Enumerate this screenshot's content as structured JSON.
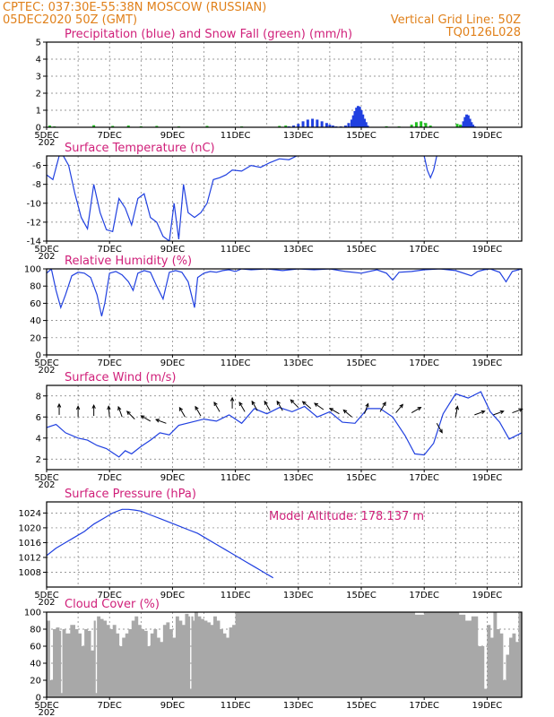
{
  "header": {
    "line1_left": "CPTEC:   037:30E-55:38N   MOSCOW (RUSSIAN)",
    "line2_left": "05DEC2020 50Z (GMT)",
    "line1_right": "Vertical Grid Line: 50Z",
    "line2_right": "TQ0126L028",
    "model_altitude": "Model Altitude: 178.137 m"
  },
  "colors": {
    "header": "#e0801a",
    "title": "#d0207a",
    "line": "#2040e0",
    "snow": "#20c020",
    "cloud": "#a8a8a8"
  },
  "x_axis": {
    "labels": [
      "5DEC",
      "7DEC",
      "9DEC",
      "11DEC",
      "13DEC",
      "15DEC",
      "17DEC",
      "19DEC"
    ],
    "label_days": [
      0,
      2,
      4,
      6,
      8,
      10,
      12,
      14
    ],
    "range_days": [
      0,
      15.1
    ],
    "cut_label": "202"
  },
  "chart_data": [
    {
      "type": "bar",
      "title": "Precipitation (blue) and Snow Fall (green) (mm/h)",
      "ylim": [
        0,
        5
      ],
      "yticks": [
        "0",
        "1",
        "2",
        "3",
        "4",
        "5"
      ],
      "series": [
        {
          "name": "Precipitation",
          "color": "#2040e0",
          "x": [
            7.7,
            7.85,
            8.0,
            8.15,
            8.3,
            8.45,
            8.6,
            8.75,
            8.9,
            9.0,
            9.1,
            9.2,
            9.35,
            9.5,
            9.6,
            9.7,
            9.75,
            9.8,
            9.85,
            9.9,
            9.95,
            10.0,
            10.05,
            10.1,
            10.15,
            10.2,
            13.2,
            13.25,
            13.3,
            13.35,
            13.4,
            13.45,
            13.5,
            13.55,
            13.6
          ],
          "values": [
            0.05,
            0.1,
            0.2,
            0.35,
            0.45,
            0.5,
            0.45,
            0.35,
            0.25,
            0.15,
            0.1,
            0.05,
            0.05,
            0.1,
            0.25,
            0.45,
            0.7,
            0.95,
            1.15,
            1.25,
            1.2,
            1.0,
            0.75,
            0.5,
            0.3,
            0.1,
            0.1,
            0.35,
            0.6,
            0.75,
            0.7,
            0.5,
            0.3,
            0.15,
            0.05
          ]
        },
        {
          "name": "Snow Fall",
          "color": "#20c020",
          "x": [
            0.1,
            0.25,
            1.5,
            2.1,
            2.6,
            3.0,
            3.5,
            4.2,
            5.1,
            6.2,
            7.4,
            7.6,
            10.8,
            11.2,
            11.6,
            11.75,
            11.9,
            12.05,
            12.2,
            13.05,
            13.15
          ],
          "values": [
            0.1,
            0.05,
            0.12,
            0.08,
            0.1,
            0.06,
            0.08,
            0.05,
            0.08,
            0.05,
            0.08,
            0.1,
            0.06,
            0.05,
            0.15,
            0.3,
            0.35,
            0.25,
            0.1,
            0.2,
            0.15
          ]
        }
      ]
    },
    {
      "type": "line",
      "title": "Surface Temperature (nC)",
      "ylim": [
        -14,
        -5
      ],
      "yticks": [
        "-14",
        "-12",
        "-10",
        "-8",
        "-6"
      ],
      "series": [
        {
          "name": "",
          "x": [
            0,
            0.2,
            0.4,
            0.5,
            0.7,
            0.9,
            1.1,
            1.3,
            1.5,
            1.7,
            1.9,
            2.1,
            2.3,
            2.5,
            2.7,
            2.9,
            3.1,
            3.3,
            3.5,
            3.7,
            3.9,
            4.05,
            4.2,
            4.35,
            4.5,
            4.7,
            4.9,
            5.1,
            5.3,
            5.5,
            5.7,
            5.9,
            6.2,
            6.5,
            6.8,
            7.1,
            7.4,
            7.7,
            7.95
          ],
          "values": [
            -7,
            -7.5,
            -5,
            -4.8,
            -6,
            -9,
            -11.5,
            -12.7,
            -8,
            -11,
            -12.8,
            -13,
            -9.5,
            -10.5,
            -12.3,
            -9.5,
            -9,
            -11.5,
            -12,
            -13.5,
            -14,
            -10,
            -13.8,
            -8,
            -11,
            -11.5,
            -11,
            -10,
            -7.5,
            -7.3,
            -7,
            -6.5,
            -6.6,
            -6,
            -6.2,
            -5.7,
            -5.3,
            -5.4,
            -5
          ]
        },
        {
          "name": "",
          "x": [
            12.0,
            12.1,
            12.2,
            12.3,
            12.4
          ],
          "values": [
            -5,
            -6.5,
            -7.3,
            -6.5,
            -5
          ]
        }
      ]
    },
    {
      "type": "line",
      "title": "Relative Humidity (%)",
      "ylim": [
        0,
        100
      ],
      "yticks": [
        "0",
        "20",
        "40",
        "60",
        "80",
        "100"
      ],
      "series": [
        {
          "name": "",
          "x": [
            0,
            0.15,
            0.3,
            0.45,
            0.6,
            0.8,
            1.0,
            1.2,
            1.4,
            1.6,
            1.75,
            1.85,
            2.0,
            2.2,
            2.4,
            2.6,
            2.75,
            2.9,
            3.1,
            3.3,
            3.5,
            3.7,
            3.9,
            4.1,
            4.3,
            4.5,
            4.6,
            4.7,
            4.8,
            5.0,
            5.2,
            5.4,
            5.6,
            5.8,
            6.0,
            6.2,
            6.5,
            7.0,
            7.5,
            8.0,
            8.5,
            9.0,
            9.5,
            10.0,
            10.5,
            10.8,
            11.0,
            11.2,
            11.6,
            12.0,
            12.5,
            13.0,
            13.5,
            13.7,
            13.9,
            14.1,
            14.4,
            14.6,
            14.8,
            15.1
          ],
          "values": [
            95,
            100,
            75,
            55,
            70,
            92,
            96,
            95,
            90,
            70,
            45,
            60,
            95,
            97,
            93,
            85,
            75,
            95,
            98,
            96,
            80,
            65,
            96,
            98,
            96,
            85,
            70,
            55,
            90,
            95,
            97,
            96,
            98,
            99,
            97,
            100,
            99,
            100,
            98,
            100,
            99,
            100,
            97,
            95,
            99,
            95,
            87,
            96,
            97,
            99,
            100,
            98,
            92,
            97,
            99,
            100,
            96,
            85,
            97,
            100
          ]
        }
      ]
    },
    {
      "type": "line",
      "title": "Surface Wind (m/s)",
      "ylim": [
        1,
        9
      ],
      "yticks": [
        "2",
        "4",
        "6",
        "8"
      ],
      "series": [
        {
          "name": "",
          "x": [
            0,
            0.3,
            0.6,
            1.0,
            1.3,
            1.6,
            1.9,
            2.1,
            2.3,
            2.5,
            2.7,
            3.0,
            3.3,
            3.6,
            3.9,
            4.2,
            4.6,
            5.0,
            5.4,
            5.8,
            6.2,
            6.6,
            7.0,
            7.4,
            7.8,
            8.2,
            8.6,
            9.0,
            9.4,
            9.8,
            10.2,
            10.6,
            11.0,
            11.4,
            11.7,
            12.0,
            12.3,
            12.6,
            13.0,
            13.4,
            13.8,
            14.1,
            14.4,
            14.7,
            15.1
          ],
          "values": [
            5,
            5.3,
            4.5,
            4,
            3.8,
            3.3,
            3,
            2.6,
            2.2,
            2.8,
            2.5,
            3.2,
            3.8,
            4.5,
            4.3,
            5.2,
            5.5,
            5.8,
            5.6,
            6.2,
            5.4,
            6.8,
            6.3,
            6.9,
            6.5,
            7,
            6,
            6.5,
            5.5,
            5.4,
            6.8,
            6.8,
            6,
            4.2,
            2.5,
            2.4,
            3.5,
            6.3,
            8.2,
            7.8,
            8.4,
            6.5,
            5.5,
            3.9,
            4.5
          ]
        }
      ]
    },
    {
      "type": "line",
      "title": "Surface Pressure (hPa)",
      "ylim": [
        1004,
        1027
      ],
      "yticks": [
        "1008",
        "1012",
        "1016",
        "1020",
        "1024"
      ],
      "series": [
        {
          "name": "",
          "x": [
            0,
            0.3,
            0.6,
            0.9,
            1.2,
            1.5,
            1.8,
            2.1,
            2.4,
            2.6,
            2.8,
            3.0,
            3.3,
            3.6,
            3.9,
            4.2,
            4.5,
            4.8,
            5.1,
            5.4,
            5.7,
            6.0,
            6.3,
            6.6,
            6.9,
            7.2
          ],
          "values": [
            1012.5,
            1014.5,
            1016,
            1017.5,
            1019,
            1021,
            1022.5,
            1024,
            1025,
            1025,
            1024.8,
            1024.5,
            1023.5,
            1022.5,
            1021.5,
            1020.5,
            1019.5,
            1018.5,
            1017,
            1015.5,
            1014,
            1012.5,
            1011,
            1009.5,
            1008,
            1006.5
          ]
        }
      ]
    },
    {
      "type": "area",
      "title": "Cloud Cover (%)",
      "ylim": [
        0,
        100
      ],
      "yticks": [
        "0",
        "20",
        "40",
        "60",
        "80",
        "100"
      ],
      "series": [
        {
          "name": "",
          "x": [
            0,
            0.1,
            0.2,
            0.3,
            0.4,
            0.45,
            0.5,
            0.6,
            0.75,
            0.9,
            1.0,
            1.1,
            1.2,
            1.3,
            1.4,
            1.5,
            1.55,
            1.6,
            1.7,
            1.8,
            1.9,
            2.0,
            2.1,
            2.2,
            2.3,
            2.4,
            2.5,
            2.6,
            2.7,
            2.8,
            2.9,
            3.0,
            3.1,
            3.2,
            3.3,
            3.4,
            3.5,
            3.6,
            3.7,
            3.8,
            3.9,
            4.0,
            4.1,
            4.2,
            4.3,
            4.4,
            4.5,
            4.55,
            4.6,
            4.65,
            4.7,
            4.8,
            4.9,
            5.0,
            5.1,
            5.2,
            5.3,
            5.4,
            5.5,
            5.6,
            5.7,
            5.8,
            5.9,
            6.0,
            6.1,
            6.2,
            6.3,
            7.0,
            8.0,
            9.0,
            10.0,
            11.0,
            11.5,
            11.7,
            12.0,
            12.3,
            12.6,
            12.9,
            13.1,
            13.3,
            13.5,
            13.7,
            13.9,
            14.0,
            14.1,
            14.2,
            14.3,
            14.4,
            14.5,
            14.6,
            14.7,
            14.8,
            14.9,
            15.0,
            15.1
          ],
          "values": [
            90,
            20,
            80,
            82,
            78,
            5,
            80,
            75,
            85,
            80,
            75,
            60,
            80,
            78,
            55,
            90,
            5,
            95,
            92,
            90,
            85,
            80,
            85,
            75,
            60,
            70,
            75,
            80,
            90,
            95,
            85,
            80,
            78,
            60,
            75,
            80,
            70,
            65,
            85,
            88,
            80,
            70,
            95,
            90,
            85,
            98,
            95,
            10,
            95,
            90,
            100,
            95,
            92,
            90,
            88,
            85,
            95,
            90,
            80,
            75,
            70,
            82,
            85,
            100,
            100,
            100,
            100,
            100,
            100,
            100,
            100,
            100,
            100,
            97,
            100,
            100,
            100,
            100,
            97,
            90,
            95,
            60,
            10,
            85,
            70,
            100,
            80,
            75,
            20,
            50,
            70,
            75,
            65,
            100,
            100
          ]
        }
      ]
    }
  ]
}
